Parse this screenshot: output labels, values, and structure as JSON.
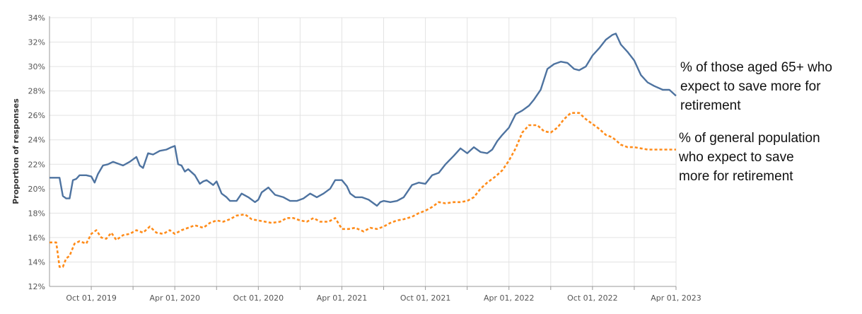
{
  "chart_data": {
    "type": "line",
    "ylabel": "Proportion of responses",
    "xlabel": "",
    "ylim": [
      12,
      34
    ],
    "y_ticks": [
      12,
      14,
      16,
      18,
      20,
      22,
      24,
      26,
      28,
      30,
      32,
      34
    ],
    "y_tick_suffix": "%",
    "x_ticks": [
      "Oct 01, 2019",
      "Apr 01, 2020",
      "Oct 01, 2020",
      "Apr 01, 2021",
      "Oct 01, 2021",
      "Apr 01, 2022",
      "Oct 01, 2022",
      "Apr 01, 2023"
    ],
    "x_tick_values": [
      2019.75,
      2020.25,
      2020.75,
      2021.25,
      2021.75,
      2022.25,
      2022.75,
      2023.25
    ],
    "xlim": [
      2019.5,
      2023.25
    ],
    "grid": true,
    "legend": "none",
    "series": [
      {
        "name": "% of those aged 65+ who expect to save more for retirement",
        "color": "#4e73a0",
        "style": "solid",
        "x": [
          2019.5,
          2019.54,
          2019.56,
          2019.58,
          2019.6,
          2019.62,
          2019.64,
          2019.66,
          2019.68,
          2019.72,
          2019.75,
          2019.77,
          2019.79,
          2019.82,
          2019.85,
          2019.88,
          2019.9,
          2019.94,
          2019.98,
          2020.02,
          2020.04,
          2020.06,
          2020.09,
          2020.12,
          2020.16,
          2020.2,
          2020.23,
          2020.25,
          2020.27,
          2020.29,
          2020.31,
          2020.33,
          2020.37,
          2020.4,
          2020.42,
          2020.44,
          2020.48,
          2020.5,
          2020.53,
          2020.56,
          2020.58,
          2020.62,
          2020.65,
          2020.69,
          2020.73,
          2020.75,
          2020.77,
          2020.81,
          2020.85,
          2020.9,
          2020.94,
          2020.98,
          2021.02,
          2021.06,
          2021.1,
          2021.14,
          2021.18,
          2021.21,
          2021.25,
          2021.28,
          2021.3,
          2021.33,
          2021.37,
          2021.41,
          2021.46,
          2021.48,
          2021.5,
          2021.54,
          2021.58,
          2021.62,
          2021.67,
          2021.71,
          2021.75,
          2021.79,
          2021.83,
          2021.87,
          2021.92,
          2021.96,
          2022.0,
          2022.04,
          2022.08,
          2022.12,
          2022.15,
          2022.18,
          2022.21,
          2022.25,
          2022.29,
          2022.33,
          2022.37,
          2022.4,
          2022.44,
          2022.48,
          2022.52,
          2022.56,
          2022.6,
          2022.64,
          2022.67,
          2022.71,
          2022.75,
          2022.79,
          2022.83,
          2022.87,
          2022.89,
          2022.92,
          2022.96,
          2023.0,
          2023.04,
          2023.08,
          2023.12,
          2023.17,
          2023.21,
          2023.25
        ],
        "y": [
          20.9,
          20.9,
          20.9,
          19.4,
          19.2,
          19.2,
          20.7,
          20.8,
          21.1,
          21.1,
          21.0,
          20.5,
          21.2,
          21.9,
          22.0,
          22.2,
          22.1,
          21.9,
          22.2,
          22.6,
          21.9,
          21.7,
          22.9,
          22.8,
          23.1,
          23.2,
          23.4,
          23.5,
          22.0,
          21.9,
          21.4,
          21.6,
          21.1,
          20.4,
          20.6,
          20.7,
          20.3,
          20.6,
          19.6,
          19.3,
          19.0,
          19.0,
          19.6,
          19.3,
          18.9,
          19.1,
          19.7,
          20.1,
          19.5,
          19.3,
          19.0,
          19.0,
          19.2,
          19.6,
          19.3,
          19.6,
          20.0,
          20.7,
          20.7,
          20.2,
          19.6,
          19.3,
          19.3,
          19.1,
          18.6,
          18.9,
          19.0,
          18.9,
          19.0,
          19.3,
          20.3,
          20.5,
          20.4,
          21.1,
          21.3,
          22.0,
          22.7,
          23.3,
          22.9,
          23.4,
          23.0,
          22.9,
          23.2,
          23.9,
          24.4,
          25.0,
          26.1,
          26.4,
          26.8,
          27.3,
          28.1,
          29.8,
          30.2,
          30.4,
          30.3,
          29.8,
          29.7,
          30.0,
          30.9,
          31.5,
          32.2,
          32.6,
          32.7,
          31.8,
          31.2,
          30.5,
          29.3,
          28.7,
          28.4,
          28.1,
          28.1,
          27.6
        ]
      },
      {
        "name": "% of general population who expect to save more for retirement",
        "color": "#ff8c1a",
        "style": "dashed",
        "x": [
          2019.5,
          2019.54,
          2019.56,
          2019.58,
          2019.6,
          2019.62,
          2019.65,
          2019.68,
          2019.72,
          2019.75,
          2019.78,
          2019.81,
          2019.84,
          2019.87,
          2019.9,
          2019.94,
          2019.98,
          2020.02,
          2020.06,
          2020.1,
          2020.14,
          2020.18,
          2020.22,
          2020.25,
          2020.29,
          2020.33,
          2020.37,
          2020.42,
          2020.46,
          2020.5,
          2020.54,
          2020.58,
          2020.62,
          2020.67,
          2020.71,
          2020.75,
          2020.79,
          2020.83,
          2020.88,
          2020.92,
          2020.96,
          2021.0,
          2021.04,
          2021.08,
          2021.12,
          2021.17,
          2021.21,
          2021.25,
          2021.29,
          2021.33,
          2021.38,
          2021.42,
          2021.46,
          2021.5,
          2021.54,
          2021.58,
          2021.62,
          2021.67,
          2021.71,
          2021.75,
          2021.79,
          2021.83,
          2021.87,
          2021.92,
          2021.96,
          2022.0,
          2022.04,
          2022.08,
          2022.12,
          2022.17,
          2022.21,
          2022.25,
          2022.29,
          2022.33,
          2022.37,
          2022.42,
          2022.46,
          2022.5,
          2022.54,
          2022.58,
          2022.62,
          2022.67,
          2022.71,
          2022.75,
          2022.79,
          2022.83,
          2022.87,
          2022.92,
          2022.96,
          2023.0,
          2023.04,
          2023.08,
          2023.12,
          2023.17,
          2023.21,
          2023.25
        ],
        "y": [
          15.6,
          15.6,
          13.6,
          13.6,
          14.3,
          14.5,
          15.5,
          15.7,
          15.5,
          16.3,
          16.6,
          16.0,
          15.9,
          16.4,
          15.8,
          16.2,
          16.3,
          16.6,
          16.4,
          16.9,
          16.4,
          16.3,
          16.6,
          16.3,
          16.6,
          16.8,
          17.0,
          16.8,
          17.2,
          17.4,
          17.3,
          17.5,
          17.8,
          17.9,
          17.5,
          17.4,
          17.3,
          17.2,
          17.3,
          17.6,
          17.6,
          17.4,
          17.3,
          17.6,
          17.3,
          17.3,
          17.6,
          16.7,
          16.7,
          16.8,
          16.5,
          16.8,
          16.7,
          16.9,
          17.2,
          17.4,
          17.5,
          17.7,
          18.0,
          18.2,
          18.5,
          18.9,
          18.8,
          18.9,
          18.9,
          19.0,
          19.3,
          20.0,
          20.5,
          21.0,
          21.5,
          22.3,
          23.3,
          24.6,
          25.2,
          25.2,
          24.7,
          24.6,
          25.0,
          25.7,
          26.2,
          26.2,
          25.7,
          25.3,
          24.9,
          24.4,
          24.2,
          23.6,
          23.4,
          23.4,
          23.3,
          23.2,
          23.2,
          23.2,
          23.2,
          23.2
        ]
      }
    ]
  },
  "annotations": {
    "series_1": "% of those aged 65+ who\nexpect to save more for\nretirement",
    "series_2": "% of general population\nwho expect to save\nmore for retirement"
  }
}
